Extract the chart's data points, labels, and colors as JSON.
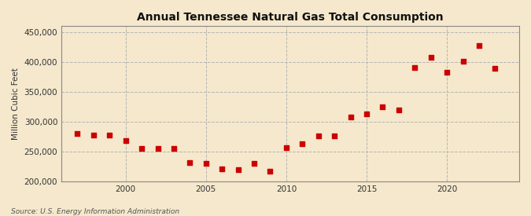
{
  "title": "Annual Tennessee Natural Gas Total Consumption",
  "ylabel": "Million Cubic Feet",
  "source": "Source: U.S. Energy Information Administration",
  "background_color": "#f5e8cc",
  "plot_background_color": "#f5e8cc",
  "marker_color": "#cc0000",
  "marker": "s",
  "marker_size": 16,
  "xlim": [
    1996,
    2024.5
  ],
  "ylim": [
    200000,
    460000
  ],
  "yticks": [
    200000,
    250000,
    300000,
    350000,
    400000,
    450000
  ],
  "xticks": [
    2000,
    2005,
    2010,
    2015,
    2020
  ],
  "grid_color": "#b0b0b0",
  "years": [
    1997,
    1998,
    1999,
    2000,
    2001,
    2002,
    2003,
    2004,
    2005,
    2006,
    2007,
    2008,
    2009,
    2010,
    2011,
    2012,
    2013,
    2014,
    2015,
    2016,
    2017,
    2018,
    2019,
    2020,
    2021,
    2022,
    2023
  ],
  "values": [
    280000,
    278000,
    278000,
    268000,
    255000,
    255000,
    255000,
    232000,
    230000,
    221000,
    220000,
    230000,
    217000,
    257000,
    263000,
    276000,
    277000,
    308000,
    313000,
    325000,
    320000,
    391000,
    408000,
    383000,
    401000,
    427000,
    389000
  ]
}
